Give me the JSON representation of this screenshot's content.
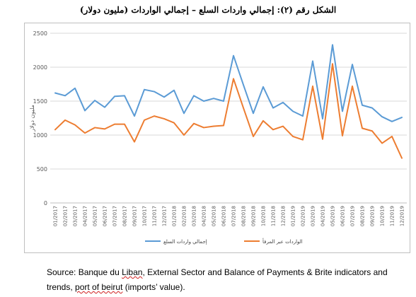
{
  "source": {
    "prefix": "Source: Banque du ",
    "liban": "Liban",
    "middle": ", External Sector and Balance of Payments & Brite indicators and trends, ",
    "port": "port of beirut",
    "suffix": " (imports’ value)."
  },
  "chart_data": {
    "type": "line",
    "title": "الشكل رقم (٢): إجمالي واردات السلع – إجمالي الواردات (مليون دولار)",
    "ylabel": "مليون دولار",
    "xlabel": "",
    "ylim": [
      0,
      2500
    ],
    "yticks": [
      0,
      500,
      1000,
      1500,
      2000,
      2500
    ],
    "grid": true,
    "legend_position": "bottom",
    "categories": [
      "01/2017",
      "02/2017",
      "03/2017",
      "04/2017",
      "05/2017",
      "06/2017",
      "07/2017",
      "08/2017",
      "09/2017",
      "10/2017",
      "11/2017",
      "12/2017",
      "01/2018",
      "02/2018",
      "03/2018",
      "04/2018",
      "05/2018",
      "06/2018",
      "07/2018",
      "08/2018",
      "09/2018",
      "10/2018",
      "11/2018",
      "12/2018",
      "01/2019",
      "02/2019",
      "03/2019",
      "04/2019",
      "05/2019",
      "06/2019",
      "07/2019",
      "08/2019",
      "09/2019",
      "10/2019",
      "11/2019",
      "12/2019"
    ],
    "series": [
      {
        "name": "إجمالي واردات السلع",
        "color": "#5b9bd5",
        "values": [
          1620,
          1580,
          1690,
          1360,
          1510,
          1410,
          1570,
          1580,
          1280,
          1670,
          1640,
          1560,
          1660,
          1320,
          1580,
          1500,
          1540,
          1500,
          2170,
          1740,
          1320,
          1710,
          1400,
          1480,
          1350,
          1280,
          2090,
          1240,
          2330,
          1350,
          2040,
          1440,
          1400,
          1270,
          1200,
          1260
        ]
      },
      {
        "name": "الواردات عبر المرفأ",
        "color": "#ed7d31",
        "values": [
          1080,
          1220,
          1150,
          1030,
          1110,
          1090,
          1160,
          1160,
          900,
          1220,
          1280,
          1240,
          1180,
          1000,
          1170,
          1110,
          1130,
          1140,
          1830,
          1400,
          980,
          1210,
          1080,
          1130,
          980,
          930,
          1720,
          940,
          2050,
          990,
          1720,
          1100,
          1060,
          880,
          980,
          660
        ]
      }
    ]
  }
}
